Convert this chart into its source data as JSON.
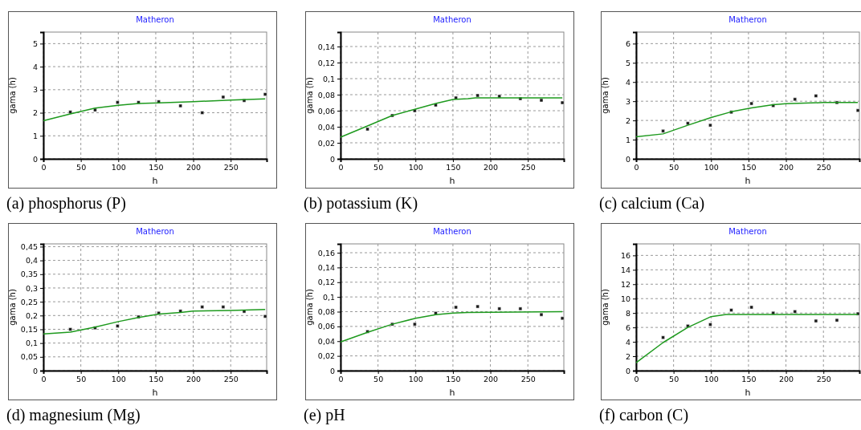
{
  "chart_data": [
    {
      "type": "scatter",
      "title": "Matheron",
      "xlabel": "h",
      "ylabel": "gama (h)",
      "annotations": [
        "(a) phosphorus (P)"
      ],
      "xlim": [
        0,
        298
      ],
      "xticks": [
        0,
        50,
        100,
        150,
        200,
        250
      ],
      "ylim": [
        0,
        5.5
      ],
      "yticks": [
        0,
        1,
        2,
        3,
        4,
        5
      ],
      "grid": true,
      "series": [
        {
          "marker": "square",
          "color": "#1a1a1a",
          "x": [
            36,
            69,
            99,
            127,
            154,
            183,
            212,
            240,
            268,
            296
          ],
          "values": [
            2.03,
            2.12,
            2.45,
            2.45,
            2.48,
            2.3,
            2.0,
            2.68,
            2.53,
            2.8
          ]
        },
        {
          "type": "line",
          "color": "#1e9a1e",
          "x": [
            0,
            36,
            69,
            100,
            127,
            154,
            200,
            250,
            296
          ],
          "values": [
            1.65,
            1.95,
            2.2,
            2.32,
            2.4,
            2.43,
            2.48,
            2.55,
            2.6
          ]
        }
      ]
    },
    {
      "type": "scatter",
      "title": "Matheron",
      "xlabel": "h",
      "ylabel": "gama (h)",
      "annotations": [
        "(b) potassium (K)"
      ],
      "xlim": [
        0,
        298
      ],
      "xticks": [
        0,
        50,
        100,
        150,
        200,
        250
      ],
      "ylim": [
        0,
        0.158
      ],
      "yticks": [
        0,
        {
          "value": 0.02,
          "label": "0,02"
        },
        {
          "value": 0.04,
          "label": "0,04"
        },
        {
          "value": 0.06,
          "label": "0,06"
        },
        {
          "value": 0.08,
          "label": "0,08"
        },
        {
          "value": 0.1,
          "label": "0,1"
        },
        {
          "value": 0.12,
          "label": "0,12"
        },
        {
          "value": 0.14,
          "label": "0,14"
        }
      ],
      "grid": true,
      "series": [
        {
          "marker": "square",
          "color": "#1a1a1a",
          "x": [
            36,
            69,
            99,
            127,
            154,
            183,
            212,
            240,
            268,
            296
          ],
          "values": [
            0.037,
            0.054,
            0.06,
            0.067,
            0.076,
            0.079,
            0.078,
            0.075,
            0.073,
            0.07
          ]
        },
        {
          "type": "line",
          "color": "#1e9a1e",
          "x": [
            0,
            36,
            69,
            100,
            127,
            150,
            170,
            180,
            296
          ],
          "values": [
            0.027,
            0.041,
            0.054,
            0.062,
            0.069,
            0.074,
            0.075,
            0.076,
            0.076
          ]
        }
      ]
    },
    {
      "type": "scatter",
      "title": "Matheron",
      "xlabel": "h",
      "ylabel": "gama (h)",
      "annotations": [
        "(c) calcium (Ca)"
      ],
      "xlim": [
        0,
        298
      ],
      "xticks": [
        0,
        50,
        100,
        150,
        200,
        250
      ],
      "ylim": [
        0,
        6.6
      ],
      "yticks": [
        0,
        1,
        2,
        3,
        4,
        5,
        6
      ],
      "grid": true,
      "series": [
        {
          "marker": "square",
          "color": "#1a1a1a",
          "x": [
            36,
            69,
            99,
            127,
            154,
            183,
            212,
            240,
            268,
            296
          ],
          "values": [
            1.45,
            1.85,
            1.75,
            2.43,
            2.88,
            2.77,
            3.1,
            3.28,
            2.93,
            2.52
          ]
        },
        {
          "type": "line",
          "color": "#1e9a1e",
          "x": [
            0,
            36,
            69,
            100,
            127,
            154,
            183,
            200,
            250,
            296
          ],
          "values": [
            1.15,
            1.3,
            1.75,
            2.15,
            2.45,
            2.65,
            2.82,
            2.87,
            2.93,
            2.93
          ]
        }
      ]
    },
    {
      "type": "scatter",
      "title": "Matheron",
      "xlabel": "h",
      "ylabel": "gama (h)",
      "annotations": [
        "(d) magnesium (Mg)"
      ],
      "xlim": [
        0,
        298
      ],
      "xticks": [
        0,
        50,
        100,
        150,
        200,
        250
      ],
      "ylim": [
        0,
        0.46
      ],
      "yticks": [
        0,
        {
          "value": 0.05,
          "label": "0,05"
        },
        {
          "value": 0.1,
          "label": "0,1"
        },
        {
          "value": 0.15,
          "label": "0,15"
        },
        {
          "value": 0.2,
          "label": "0,2"
        },
        {
          "value": 0.25,
          "label": "0,25"
        },
        {
          "value": 0.3,
          "label": "0,3"
        },
        {
          "value": 0.35,
          "label": "0,35"
        },
        {
          "value": 0.4,
          "label": "0,4"
        },
        {
          "value": 0.45,
          "label": "0,45"
        }
      ],
      "grid": true,
      "series": [
        {
          "marker": "square",
          "color": "#1a1a1a",
          "x": [
            36,
            69,
            99,
            127,
            154,
            183,
            212,
            240,
            268,
            296
          ],
          "values": [
            0.15,
            0.155,
            0.162,
            0.195,
            0.209,
            0.216,
            0.231,
            0.231,
            0.215,
            0.197
          ]
        },
        {
          "type": "line",
          "color": "#1e9a1e",
          "x": [
            0,
            36,
            69,
            100,
            127,
            154,
            183,
            200,
            250,
            296
          ],
          "values": [
            0.133,
            0.14,
            0.158,
            0.178,
            0.193,
            0.205,
            0.211,
            0.216,
            0.218,
            0.222
          ]
        }
      ]
    },
    {
      "type": "scatter",
      "title": "Matheron",
      "xlabel": "h",
      "ylabel": "gama (h)",
      "annotations": [
        "(e) pH"
      ],
      "xlim": [
        0,
        298
      ],
      "xticks": [
        0,
        50,
        100,
        150,
        200,
        250
      ],
      "ylim": [
        0,
        0.172
      ],
      "yticks": [
        0,
        {
          "value": 0.02,
          "label": "0,02"
        },
        {
          "value": 0.04,
          "label": "0,04"
        },
        {
          "value": 0.06,
          "label": "0,06"
        },
        {
          "value": 0.08,
          "label": "0,08"
        },
        {
          "value": 0.1,
          "label": "0,1"
        },
        {
          "value": 0.12,
          "label": "0,12"
        },
        {
          "value": 0.14,
          "label": "0,14"
        },
        {
          "value": 0.16,
          "label": "0,16"
        }
      ],
      "grid": true,
      "series": [
        {
          "marker": "square",
          "color": "#1a1a1a",
          "x": [
            36,
            69,
            99,
            127,
            154,
            183,
            212,
            240,
            268,
            296
          ],
          "values": [
            0.053,
            0.063,
            0.063,
            0.078,
            0.086,
            0.087,
            0.084,
            0.084,
            0.076,
            0.071
          ]
        },
        {
          "type": "line",
          "color": "#1e9a1e",
          "x": [
            0,
            36,
            69,
            100,
            127,
            150,
            170,
            296
          ],
          "values": [
            0.039,
            0.052,
            0.063,
            0.071,
            0.076,
            0.078,
            0.079,
            0.08
          ]
        }
      ]
    },
    {
      "type": "scatter",
      "title": "Matheron",
      "xlabel": "h",
      "ylabel": "gama (h)",
      "annotations": [
        "(f) carbon (C)"
      ],
      "xlim": [
        0,
        298
      ],
      "xticks": [
        0,
        50,
        100,
        150,
        200,
        250
      ],
      "ylim": [
        0,
        17.6
      ],
      "yticks": [
        0,
        2,
        4,
        6,
        8,
        10,
        12,
        14,
        16
      ],
      "grid": true,
      "series": [
        {
          "marker": "square",
          "color": "#1a1a1a",
          "x": [
            36,
            69,
            99,
            127,
            154,
            183,
            212,
            240,
            268,
            296
          ],
          "values": [
            4.6,
            6.2,
            6.4,
            8.4,
            8.8,
            8.0,
            8.2,
            6.9,
            7.0,
            7.9
          ]
        },
        {
          "type": "line",
          "color": "#1e9a1e",
          "x": [
            0,
            36,
            69,
            100,
            120,
            296
          ],
          "values": [
            1.1,
            3.9,
            6.0,
            7.5,
            7.8,
            7.8
          ]
        }
      ]
    }
  ]
}
